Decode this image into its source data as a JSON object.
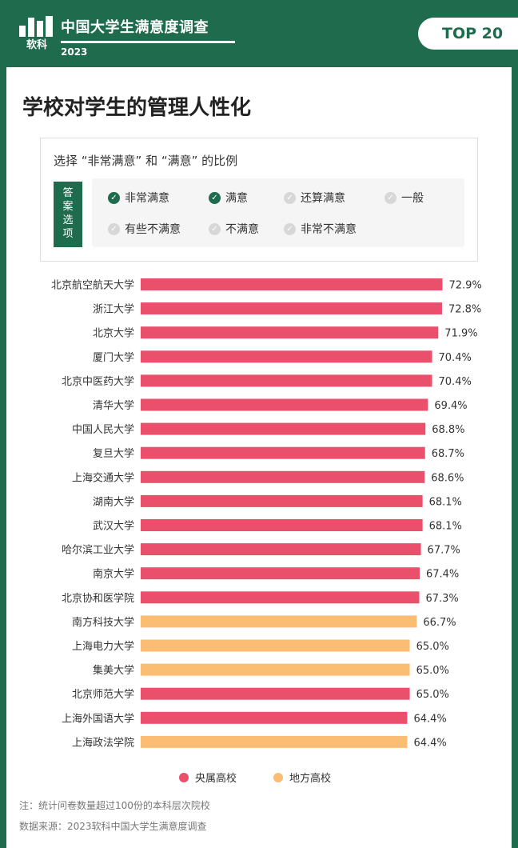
{
  "header": {
    "logo_text": "软科",
    "title": "中国大学生满意度调查",
    "year": "2023",
    "badge": "TOP 20"
  },
  "card": {
    "title": "学校对学生的管理人性化"
  },
  "filter": {
    "title": "选择 “非常满意” 和 “满意” 的比例",
    "tag_chars": [
      "答",
      "案",
      "选",
      "项"
    ],
    "options": [
      {
        "label": "非常满意",
        "checked": true
      },
      {
        "label": "满意",
        "checked": true
      },
      {
        "label": "还算满意",
        "checked": false
      },
      {
        "label": "一般",
        "checked": false
      },
      {
        "label": "有些不满意",
        "checked": false
      },
      {
        "label": "不满意",
        "checked": false
      },
      {
        "label": "非常不满意",
        "checked": false
      }
    ]
  },
  "chart_data": {
    "type": "bar",
    "orientation": "horizontal",
    "unit": "%",
    "categories": [
      "北京航空航天大学",
      "浙江大学",
      "北京大学",
      "厦门大学",
      "北京中医药大学",
      "清华大学",
      "中国人民大学",
      "复旦大学",
      "上海交通大学",
      "湖南大学",
      "武汉大学",
      "哈尔滨工业大学",
      "南京大学",
      "北京协和医学院",
      "南方科技大学",
      "上海电力大学",
      "集美大学",
      "北京师范大学",
      "上海外国语大学",
      "上海政法学院"
    ],
    "values": [
      72.9,
      72.8,
      71.9,
      70.4,
      70.4,
      69.4,
      68.8,
      68.7,
      68.6,
      68.1,
      68.1,
      67.7,
      67.4,
      67.3,
      66.7,
      65.0,
      65.0,
      65.0,
      64.4,
      64.4
    ],
    "groups": [
      "央属高校",
      "央属高校",
      "央属高校",
      "央属高校",
      "央属高校",
      "央属高校",
      "央属高校",
      "央属高校",
      "央属高校",
      "央属高校",
      "央属高校",
      "央属高校",
      "央属高校",
      "央属高校",
      "地方高校",
      "地方高校",
      "地方高校",
      "央属高校",
      "央属高校",
      "地方高校"
    ],
    "legend": [
      {
        "name": "央属高校",
        "color": "#ea4f6c"
      },
      {
        "name": "地方高校",
        "color": "#fbbc74"
      }
    ],
    "legend_position": "bottom"
  },
  "notes": {
    "note1": "注：统计问卷数量超过100份的本科层次院校",
    "note2": "数据来源：2023软科中国大学生满意度调查"
  },
  "colors": {
    "brand_green": "#1e6b4e",
    "central": "#ea4f6c",
    "local": "#fbbc74"
  }
}
